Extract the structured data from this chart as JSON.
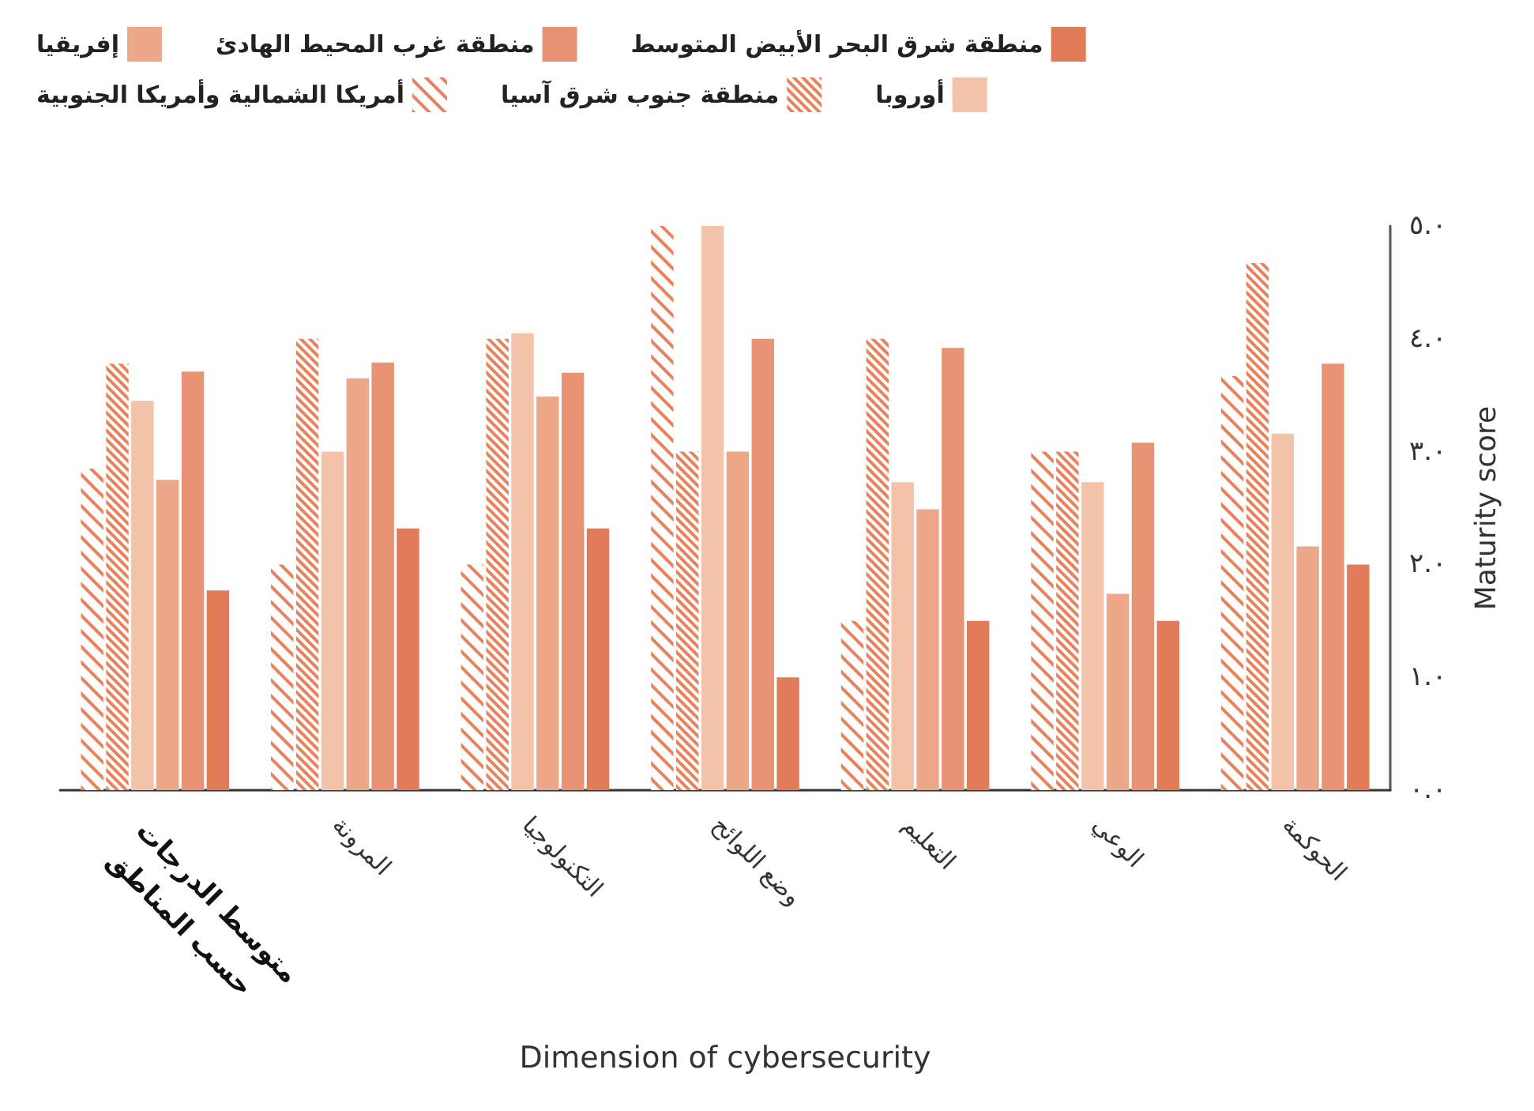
{
  "chart_data": {
    "type": "bar",
    "xlabel": "Dimension of cybersecurity",
    "ylabel": "Maturity score",
    "categories": [
      "متوسط الدرجات\nحسب المناطق",
      "المرونة",
      "التكنولوجيا",
      "وضع اللوائح",
      "التعليم",
      "الوعي",
      "الحوكمة"
    ],
    "series": [
      {
        "name": "أمريكا الشمالية وأمريكا الجنوبية",
        "color": "#e8825c",
        "values": [
          2.85,
          2.0,
          2.0,
          5.0,
          1.5,
          3.0,
          3.67
        ]
      },
      {
        "name": "منطقة جنوب شرق آسيا",
        "color": "#e8825c",
        "values": [
          3.78,
          4.0,
          4.0,
          3.0,
          4.0,
          3.0,
          4.67
        ]
      },
      {
        "name": "أوروبا",
        "color": "#f3c4aa",
        "values": [
          3.45,
          3.0,
          4.05,
          5.0,
          2.73,
          2.73,
          3.16
        ]
      },
      {
        "name": "إفريقيا",
        "color": "#eda88a",
        "values": [
          2.75,
          3.65,
          3.49,
          3.0,
          2.49,
          1.74,
          2.16
        ]
      },
      {
        "name": "منطقة غرب المحيط الهادئ",
        "color": "#e89474",
        "values": [
          3.71,
          3.79,
          3.7,
          4.0,
          3.92,
          3.08,
          3.78
        ]
      },
      {
        "name": "منطقة شرق البحر الأبيض المتوسط",
        "color": "#e27b57",
        "values": [
          1.77,
          2.32,
          2.32,
          1.0,
          1.5,
          1.5,
          2.0
        ]
      }
    ],
    "ylim": [
      0,
      5
    ],
    "yticks": [
      {
        "value": 0,
        "label": "٠.٠"
      },
      {
        "value": 1,
        "label": "١.٠"
      },
      {
        "value": 2,
        "label": "٢.٠"
      },
      {
        "value": 3,
        "label": "٣.٠"
      },
      {
        "value": 4,
        "label": "٤.٠"
      },
      {
        "value": 5,
        "label": "٥.٠"
      }
    ],
    "grid": false,
    "legend": "top"
  }
}
